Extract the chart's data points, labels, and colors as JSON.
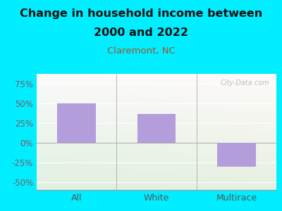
{
  "title_line1": "Change in household income between",
  "title_line2": "2000 and 2022",
  "subtitle": "Claremont, NC",
  "categories": [
    "All",
    "White",
    "Multirace"
  ],
  "values": [
    50,
    37,
    -30
  ],
  "bar_color": "#b39ddb",
  "title_fontsize": 11.5,
  "subtitle_fontsize": 9.5,
  "subtitle_color": "#a0522d",
  "tick_label_color": "#7a5a6a",
  "cat_label_color": "#555555",
  "background_outer": "#00eeff",
  "ylim": [
    -60,
    88
  ],
  "yticks": [
    -50,
    -25,
    0,
    25,
    50,
    75
  ],
  "bar_width": 0.48,
  "watermark": "City-Data.com"
}
